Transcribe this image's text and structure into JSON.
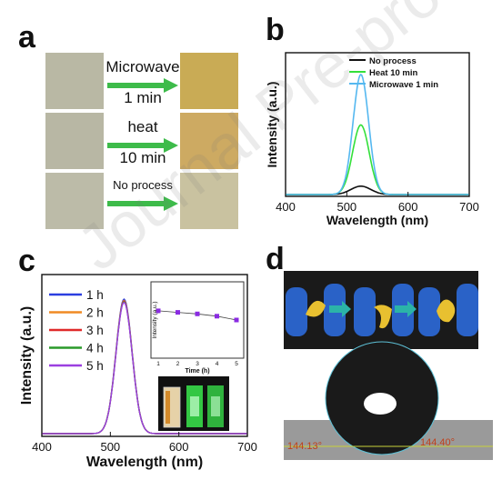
{
  "watermark": "Journal Pre-proof",
  "panel_a": {
    "letter": "a",
    "rows": [
      {
        "label_top": "Microwave",
        "label_bottom": "1 min",
        "before_color": "#b9b8a4",
        "after_color": "#c9ab55"
      },
      {
        "label_top": "heat",
        "label_bottom": "10 min",
        "before_color": "#b8b7a4",
        "after_color": "#cdaa62"
      },
      {
        "label_top": "No process",
        "label_bottom": "",
        "before_color": "#bcbba8",
        "after_color": "#c9c2a0"
      }
    ],
    "arrow_color": "#3dbb4a"
  },
  "panel_b": {
    "letter": "b"
  },
  "panel_c": {
    "letter": "c",
    "photo_glow_color": "#39e84c"
  },
  "panel_d": {
    "letter": "d",
    "glove_color": "#2a62c7",
    "film_color": "#e8c030",
    "arrow_color": "#2bb3a8"
  },
  "chart_data": [
    {
      "type": "line",
      "panel": "b",
      "xlabel": "Wavelength (nm)",
      "ylabel": "Intensity (a.u.)",
      "xlim": [
        400,
        700
      ],
      "xticks": [
        400,
        500,
        600,
        700
      ],
      "yticks": [],
      "legend": "top-right",
      "series": [
        {
          "name": "No process",
          "color": "#111111",
          "peak_x": 523,
          "peak": 0.07,
          "fwhm": 38
        },
        {
          "name": "Heat 10 min",
          "color": "#33e03a",
          "peak_x": 523,
          "peak": 0.58,
          "fwhm": 32
        },
        {
          "name": "Microwave 1 min",
          "color": "#55b8f0",
          "peak_x": 523,
          "peak": 1.0,
          "fwhm": 30
        }
      ]
    },
    {
      "type": "line",
      "panel": "c",
      "xlabel": "Wavelength (nm)",
      "ylabel": "Intensity (a.u.)",
      "xlim": [
        400,
        700
      ],
      "xticks": [
        400,
        500,
        600,
        700
      ],
      "yticks": [],
      "legend": "top-left",
      "series": [
        {
          "name": "1 h",
          "color": "#2b3ee0",
          "peak_x": 520,
          "peak": 1.0,
          "fwhm": 28
        },
        {
          "name": "2 h",
          "color": "#f08a24",
          "peak_x": 520,
          "peak": 0.99,
          "fwhm": 28
        },
        {
          "name": "3 h",
          "color": "#e02a2a",
          "peak_x": 520,
          "peak": 0.985,
          "fwhm": 28
        },
        {
          "name": "4 h",
          "color": "#2a9a2a",
          "peak_x": 520,
          "peak": 0.98,
          "fwhm": 28
        },
        {
          "name": "5 h",
          "color": "#9b3fe0",
          "peak_x": 520,
          "peak": 0.975,
          "fwhm": 28
        }
      ]
    },
    {
      "type": "line",
      "panel": "c-inset",
      "xlabel": "Time (h)",
      "ylabel": "Intensity (a.u.)",
      "x": [
        1,
        2,
        3,
        4,
        5
      ],
      "y": [
        0.62,
        0.6,
        0.58,
        0.55,
        0.5
      ],
      "xticks": [
        1,
        2,
        3,
        4,
        5
      ],
      "ylim": [
        0,
        1
      ],
      "color": "#8a2be2"
    }
  ],
  "contact_angle": {
    "left": "144.13°",
    "right": "144.40°",
    "label_color": "#c0411c"
  }
}
